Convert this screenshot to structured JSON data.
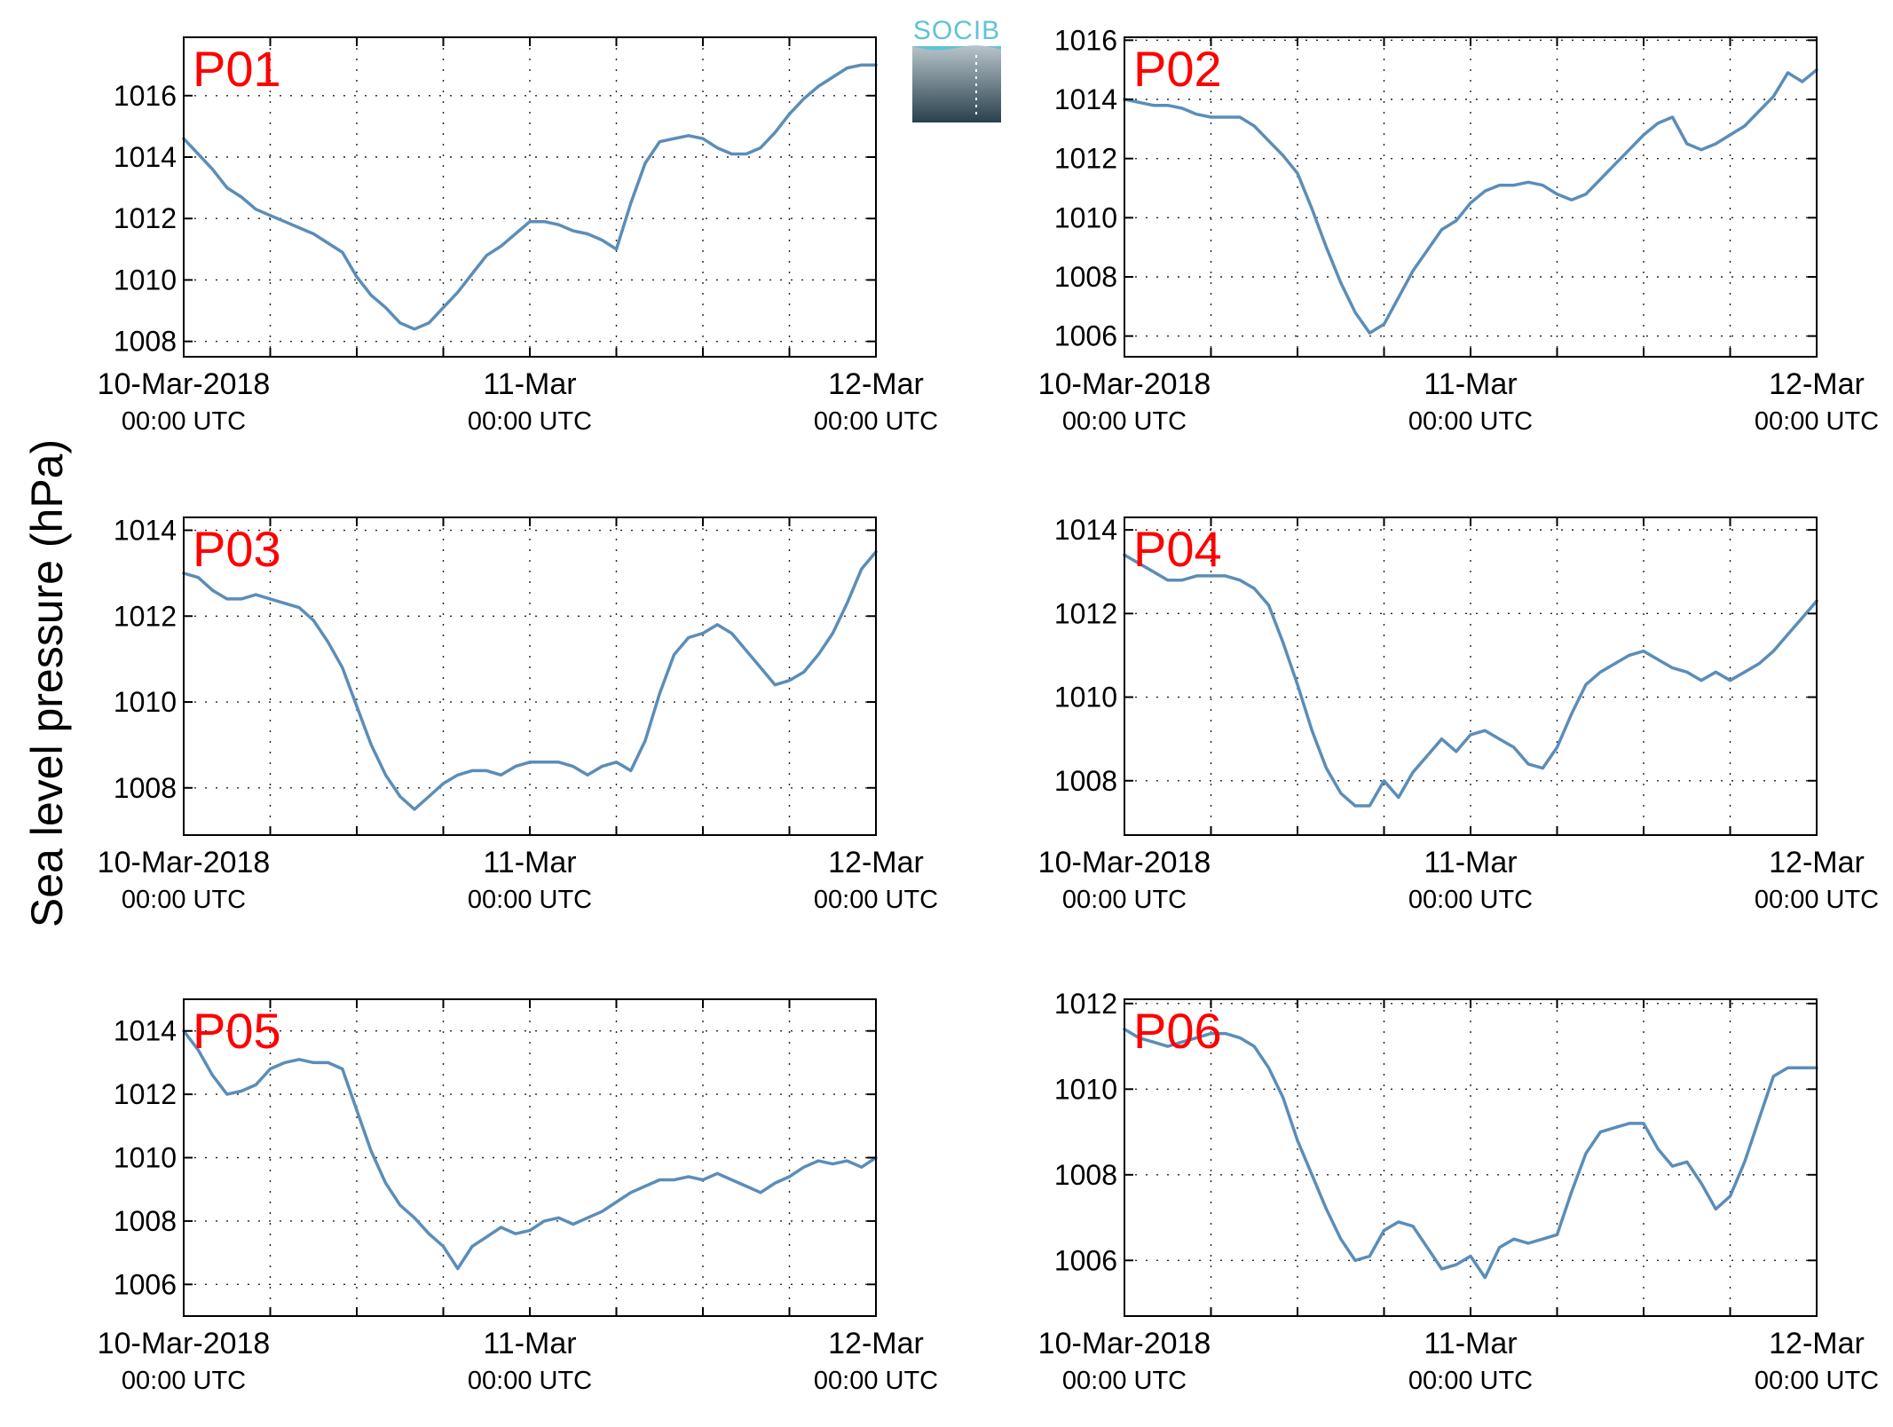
{
  "figure": {
    "ylabel": "Sea level pressure (hPa)",
    "logo_text": "SOCIB",
    "series_color": "#5b8db8",
    "label_color": "#ff0000"
  },
  "chart_data": [
    {
      "type": "line",
      "label": "P01",
      "xlim": [
        0,
        48
      ],
      "ylim": [
        1007.5,
        1017.9
      ],
      "grid": true,
      "yticks": [
        1008,
        1010,
        1012,
        1014,
        1016
      ],
      "xticks": [
        {
          "t": 0,
          "l1": "10-Mar-2018",
          "l2": "00:00 UTC"
        },
        {
          "t": 24,
          "l1": "11-Mar",
          "l2": "00:00 UTC"
        },
        {
          "t": 48,
          "l1": "12-Mar",
          "l2": "00:00 UTC"
        }
      ],
      "x": [
        0,
        1,
        2,
        3,
        4,
        5,
        6,
        7,
        8,
        9,
        10,
        11,
        12,
        13,
        14,
        15,
        16,
        17,
        18,
        19,
        20,
        21,
        22,
        23,
        24,
        25,
        26,
        27,
        28,
        29,
        30,
        31,
        32,
        33,
        34,
        35,
        36,
        37,
        38,
        39,
        40,
        41,
        42,
        43,
        44,
        45,
        46,
        47,
        48
      ],
      "y": [
        1014.6,
        1014.1,
        1013.6,
        1013.0,
        1012.7,
        1012.3,
        1012.1,
        1011.9,
        1011.7,
        1011.5,
        1011.2,
        1010.9,
        1010.1,
        1009.5,
        1009.1,
        1008.6,
        1008.4,
        1008.6,
        1009.1,
        1009.6,
        1010.2,
        1010.8,
        1011.1,
        1011.5,
        1011.9,
        1011.9,
        1011.8,
        1011.6,
        1011.5,
        1011.3,
        1011.0,
        1012.5,
        1013.8,
        1014.5,
        1014.6,
        1014.7,
        1014.6,
        1014.3,
        1014.1,
        1014.1,
        1014.3,
        1014.8,
        1015.4,
        1015.9,
        1016.3,
        1016.6,
        1016.9,
        1017.0,
        1017.0
      ]
    },
    {
      "type": "line",
      "label": "P02",
      "xlim": [
        0,
        48
      ],
      "ylim": [
        1005.3,
        1016.1
      ],
      "grid": true,
      "yticks": [
        1006,
        1008,
        1010,
        1012,
        1014,
        1016
      ],
      "xticks": [
        {
          "t": 0,
          "l1": "10-Mar-2018",
          "l2": "00:00 UTC"
        },
        {
          "t": 24,
          "l1": "11-Mar",
          "l2": "00:00 UTC"
        },
        {
          "t": 48,
          "l1": "12-Mar",
          "l2": "00:00 UTC"
        }
      ],
      "x": [
        0,
        1,
        2,
        3,
        4,
        5,
        6,
        7,
        8,
        9,
        10,
        11,
        12,
        13,
        14,
        15,
        16,
        17,
        18,
        19,
        20,
        21,
        22,
        23,
        24,
        25,
        26,
        27,
        28,
        29,
        30,
        31,
        32,
        33,
        34,
        35,
        36,
        37,
        38,
        39,
        40,
        41,
        42,
        43,
        44,
        45,
        46,
        47,
        48
      ],
      "y": [
        1014.0,
        1013.9,
        1013.8,
        1013.8,
        1013.7,
        1013.5,
        1013.4,
        1013.4,
        1013.4,
        1013.1,
        1012.6,
        1012.1,
        1011.5,
        1010.3,
        1009.0,
        1007.8,
        1006.8,
        1006.1,
        1006.4,
        1007.3,
        1008.2,
        1008.9,
        1009.6,
        1009.9,
        1010.5,
        1010.9,
        1011.1,
        1011.1,
        1011.2,
        1011.1,
        1010.8,
        1010.6,
        1010.8,
        1011.3,
        1011.8,
        1012.3,
        1012.8,
        1013.2,
        1013.4,
        1012.5,
        1012.3,
        1012.5,
        1012.8,
        1013.1,
        1013.6,
        1014.1,
        1014.9,
        1014.6,
        1015.0
      ]
    },
    {
      "type": "line",
      "label": "P03",
      "xlim": [
        0,
        48
      ],
      "ylim": [
        1006.9,
        1014.3
      ],
      "grid": true,
      "yticks": [
        1008,
        1010,
        1012,
        1014
      ],
      "xticks": [
        {
          "t": 0,
          "l1": "10-Mar-2018",
          "l2": "00:00 UTC"
        },
        {
          "t": 24,
          "l1": "11-Mar",
          "l2": "00:00 UTC"
        },
        {
          "t": 48,
          "l1": "12-Mar",
          "l2": "00:00 UTC"
        }
      ],
      "x": [
        0,
        1,
        2,
        3,
        4,
        5,
        6,
        7,
        8,
        9,
        10,
        11,
        12,
        13,
        14,
        15,
        16,
        17,
        18,
        19,
        20,
        21,
        22,
        23,
        24,
        25,
        26,
        27,
        28,
        29,
        30,
        31,
        32,
        33,
        34,
        35,
        36,
        37,
        38,
        39,
        40,
        41,
        42,
        43,
        44,
        45,
        46,
        47,
        48
      ],
      "y": [
        1013.0,
        1012.9,
        1012.6,
        1012.4,
        1012.4,
        1012.5,
        1012.4,
        1012.3,
        1012.2,
        1011.9,
        1011.4,
        1010.8,
        1009.9,
        1009.0,
        1008.3,
        1007.8,
        1007.5,
        1007.8,
        1008.1,
        1008.3,
        1008.4,
        1008.4,
        1008.3,
        1008.5,
        1008.6,
        1008.6,
        1008.6,
        1008.5,
        1008.3,
        1008.5,
        1008.6,
        1008.4,
        1009.1,
        1010.2,
        1011.1,
        1011.5,
        1011.6,
        1011.8,
        1011.6,
        1011.2,
        1010.8,
        1010.4,
        1010.5,
        1010.7,
        1011.1,
        1011.6,
        1012.3,
        1013.1,
        1013.5
      ]
    },
    {
      "type": "line",
      "label": "P04",
      "xlim": [
        0,
        48
      ],
      "ylim": [
        1006.7,
        1014.3
      ],
      "grid": true,
      "yticks": [
        1008,
        1010,
        1012,
        1014
      ],
      "xticks": [
        {
          "t": 0,
          "l1": "10-Mar-2018",
          "l2": "00:00 UTC"
        },
        {
          "t": 24,
          "l1": "11-Mar",
          "l2": "00:00 UTC"
        },
        {
          "t": 48,
          "l1": "12-Mar",
          "l2": "00:00 UTC"
        }
      ],
      "x": [
        0,
        1,
        2,
        3,
        4,
        5,
        6,
        7,
        8,
        9,
        10,
        11,
        12,
        13,
        14,
        15,
        16,
        17,
        18,
        19,
        20,
        21,
        22,
        23,
        24,
        25,
        26,
        27,
        28,
        29,
        30,
        31,
        32,
        33,
        34,
        35,
        36,
        37,
        38,
        39,
        40,
        41,
        42,
        43,
        44,
        45,
        46,
        47,
        48
      ],
      "y": [
        1013.4,
        1013.2,
        1013.0,
        1012.8,
        1012.8,
        1012.9,
        1012.9,
        1012.9,
        1012.8,
        1012.6,
        1012.2,
        1011.3,
        1010.3,
        1009.2,
        1008.3,
        1007.7,
        1007.4,
        1007.4,
        1008.0,
        1007.6,
        1008.2,
        1008.6,
        1009.0,
        1008.7,
        1009.1,
        1009.2,
        1009.0,
        1008.8,
        1008.4,
        1008.3,
        1008.8,
        1009.6,
        1010.3,
        1010.6,
        1010.8,
        1011.0,
        1011.1,
        1010.9,
        1010.7,
        1010.6,
        1010.4,
        1010.6,
        1010.4,
        1010.6,
        1010.8,
        1011.1,
        1011.5,
        1011.9,
        1012.3
      ]
    },
    {
      "type": "line",
      "label": "P05",
      "xlim": [
        0,
        48
      ],
      "ylim": [
        1005.0,
        1015.0
      ],
      "grid": true,
      "yticks": [
        1006,
        1008,
        1010,
        1012,
        1014
      ],
      "xticks": [
        {
          "t": 0,
          "l1": "10-Mar-2018",
          "l2": "00:00 UTC"
        },
        {
          "t": 24,
          "l1": "11-Mar",
          "l2": "00:00 UTC"
        },
        {
          "t": 48,
          "l1": "12-Mar",
          "l2": "00:00 UTC"
        }
      ],
      "x": [
        0,
        1,
        2,
        3,
        4,
        5,
        6,
        7,
        8,
        9,
        10,
        11,
        12,
        13,
        14,
        15,
        16,
        17,
        18,
        19,
        20,
        21,
        22,
        23,
        24,
        25,
        26,
        27,
        28,
        29,
        30,
        31,
        32,
        33,
        34,
        35,
        36,
        37,
        38,
        39,
        40,
        41,
        42,
        43,
        44,
        45,
        46,
        47,
        48
      ],
      "y": [
        1014.0,
        1013.4,
        1012.6,
        1012.0,
        1012.1,
        1012.3,
        1012.8,
        1013.0,
        1013.1,
        1013.0,
        1013.0,
        1012.8,
        1011.5,
        1010.2,
        1009.2,
        1008.5,
        1008.1,
        1007.6,
        1007.2,
        1006.5,
        1007.2,
        1007.5,
        1007.8,
        1007.6,
        1007.7,
        1008.0,
        1008.1,
        1007.9,
        1008.1,
        1008.3,
        1008.6,
        1008.9,
        1009.1,
        1009.3,
        1009.3,
        1009.4,
        1009.3,
        1009.5,
        1009.3,
        1009.1,
        1008.9,
        1009.2,
        1009.4,
        1009.7,
        1009.9,
        1009.8,
        1009.9,
        1009.7,
        1010.0
      ]
    },
    {
      "type": "line",
      "label": "P06",
      "xlim": [
        0,
        48
      ],
      "ylim": [
        1004.7,
        1012.1
      ],
      "grid": true,
      "yticks": [
        1006,
        1008,
        1010,
        1012
      ],
      "xticks": [
        {
          "t": 0,
          "l1": "10-Mar-2018",
          "l2": "00:00 UTC"
        },
        {
          "t": 24,
          "l1": "11-Mar",
          "l2": "00:00 UTC"
        },
        {
          "t": 48,
          "l1": "12-Mar",
          "l2": "00:00 UTC"
        }
      ],
      "x": [
        0,
        1,
        2,
        3,
        4,
        5,
        6,
        7,
        8,
        9,
        10,
        11,
        12,
        13,
        14,
        15,
        16,
        17,
        18,
        19,
        20,
        21,
        22,
        23,
        24,
        25,
        26,
        27,
        28,
        29,
        30,
        31,
        32,
        33,
        34,
        35,
        36,
        37,
        38,
        39,
        40,
        41,
        42,
        43,
        44,
        45,
        46,
        47,
        48
      ],
      "y": [
        1011.4,
        1011.2,
        1011.1,
        1011.0,
        1011.1,
        1011.2,
        1011.3,
        1011.3,
        1011.2,
        1011.0,
        1010.5,
        1009.8,
        1008.8,
        1008.0,
        1007.2,
        1006.5,
        1006.0,
        1006.1,
        1006.7,
        1006.9,
        1006.8,
        1006.3,
        1005.8,
        1005.9,
        1006.1,
        1005.6,
        1006.3,
        1006.5,
        1006.4,
        1006.5,
        1006.6,
        1007.6,
        1008.5,
        1009.0,
        1009.1,
        1009.2,
        1009.2,
        1008.6,
        1008.2,
        1008.3,
        1007.8,
        1007.2,
        1007.5,
        1008.3,
        1009.3,
        1010.3,
        1010.5,
        1010.5,
        1010.5
      ]
    }
  ]
}
